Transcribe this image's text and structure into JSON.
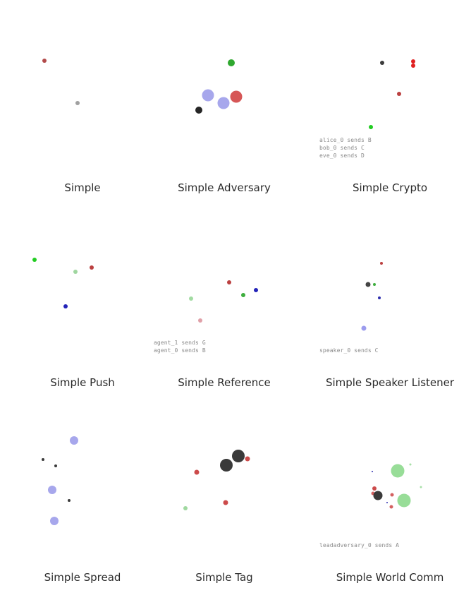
{
  "environments": [
    {
      "id": "simple",
      "label": "Simple",
      "messages": [],
      "entities": [
        {
          "kind": "landmark",
          "color": "#b24a4a",
          "r": 3
        },
        {
          "kind": "agent",
          "color": "#a0a0a0",
          "r": 3
        }
      ]
    },
    {
      "id": "simple-adversary",
      "label": "Simple Adversary",
      "messages": [],
      "entities": [
        {
          "kind": "landmark",
          "color": "#2fa82f",
          "r": 5
        },
        {
          "kind": "agent",
          "color": "#a7a7ec",
          "r": 8.5
        },
        {
          "kind": "agent",
          "color": "#a7a7ec",
          "r": 8.5
        },
        {
          "kind": "adversary",
          "color": "#d65656",
          "r": 8.5
        },
        {
          "kind": "landmark",
          "color": "#262626",
          "r": 5
        }
      ]
    },
    {
      "id": "simple-crypto",
      "label": "Simple Crypto",
      "messages": [
        "alice_0 sends B",
        "bob_0 sends C",
        "eve_0 sends D"
      ],
      "entities": [
        {
          "kind": "agent",
          "color": "#3c3c3c",
          "r": 3
        },
        {
          "kind": "agent",
          "color": "#e02020",
          "r": 3
        },
        {
          "kind": "agent",
          "color": "#e02020",
          "r": 3
        },
        {
          "kind": "landmark",
          "color": "#bb4040",
          "r": 3
        },
        {
          "kind": "landmark",
          "color": "#22cc22",
          "r": 3
        }
      ]
    },
    {
      "id": "simple-push",
      "label": "Simple Push",
      "messages": [],
      "entities": [
        {
          "kind": "landmark",
          "color": "#22cc22",
          "r": 3
        },
        {
          "kind": "agent",
          "color": "#9fd69f",
          "r": 3
        },
        {
          "kind": "adversary",
          "color": "#bb4040",
          "r": 3
        },
        {
          "kind": "landmark",
          "color": "#2323b8",
          "r": 3
        }
      ]
    },
    {
      "id": "simple-reference",
      "label": "Simple Reference",
      "messages": [
        "agent_1 sends G",
        "agent_0 sends B"
      ],
      "entities": [
        {
          "kind": "landmark",
          "color": "#bb4040",
          "r": 3
        },
        {
          "kind": "landmark",
          "color": "#2323b8",
          "r": 3
        },
        {
          "kind": "landmark",
          "color": "#3fae3f",
          "r": 3
        },
        {
          "kind": "agent",
          "color": "#a2dba2",
          "r": 3
        },
        {
          "kind": "agent",
          "color": "#e0a0a8",
          "r": 3
        }
      ]
    },
    {
      "id": "simple-speaker-listener",
      "label": "Simple Speaker Listener",
      "messages": [
        "speaker_0 sends C"
      ],
      "entities": [
        {
          "kind": "landmark",
          "color": "#bb4040",
          "r": 2
        },
        {
          "kind": "agent",
          "color": "#444444",
          "r": 3.5
        },
        {
          "kind": "landmark",
          "color": "#3fae3f",
          "r": 2
        },
        {
          "kind": "landmark",
          "color": "#2d2dae",
          "r": 2
        },
        {
          "kind": "agent",
          "color": "#9c9cee",
          "r": 3.5
        }
      ]
    },
    {
      "id": "simple-spread",
      "label": "Simple Spread",
      "messages": [],
      "entities": [
        {
          "kind": "agent",
          "color": "#a7a7ec",
          "r": 6
        },
        {
          "kind": "landmark",
          "color": "#3a3a3a",
          "r": 2
        },
        {
          "kind": "landmark",
          "color": "#3a3a3a",
          "r": 2
        },
        {
          "kind": "agent",
          "color": "#a7a7ec",
          "r": 6
        },
        {
          "kind": "landmark",
          "color": "#3a3a3a",
          "r": 2
        },
        {
          "kind": "agent",
          "color": "#a7a7ec",
          "r": 6
        }
      ]
    },
    {
      "id": "simple-tag",
      "label": "Simple Tag",
      "messages": [],
      "entities": [
        {
          "kind": "obstacle",
          "color": "#3a3a3a",
          "r": 9
        },
        {
          "kind": "obstacle",
          "color": "#3a3a3a",
          "r": 9
        },
        {
          "kind": "adversary",
          "color": "#cc4b4b",
          "r": 3.5
        },
        {
          "kind": "adversary",
          "color": "#cc4b4b",
          "r": 3.5
        },
        {
          "kind": "adversary",
          "color": "#cc4b4b",
          "r": 3.5
        },
        {
          "kind": "agent",
          "color": "#9fd89f",
          "r": 3
        }
      ]
    },
    {
      "id": "simple-world-comm",
      "label": "Simple World Comm",
      "messages": [
        "leadadversary_0 sends A"
      ],
      "entities": [
        {
          "kind": "forest",
          "color": "#98dd98",
          "r": 9.5
        },
        {
          "kind": "forest",
          "color": "#98dd98",
          "r": 9.5
        },
        {
          "kind": "food",
          "color": "#a8e0a8",
          "r": 1.5
        },
        {
          "kind": "food",
          "color": "#a8e0a8",
          "r": 1.5
        },
        {
          "kind": "landmark",
          "color": "#3030b0",
          "r": 1
        },
        {
          "kind": "adversary",
          "color": "#cc4b4b",
          "r": 3
        },
        {
          "kind": "adversary",
          "color": "#d46060",
          "r": 2.5
        },
        {
          "kind": "adversary",
          "color": "#d46060",
          "r": 2.5
        },
        {
          "kind": "adversary",
          "color": "#d46060",
          "r": 2.5
        },
        {
          "kind": "obstacle",
          "color": "#3a3a3a",
          "r": 6.5
        },
        {
          "kind": "landmark",
          "color": "#3030b0",
          "r": 1
        }
      ]
    }
  ]
}
